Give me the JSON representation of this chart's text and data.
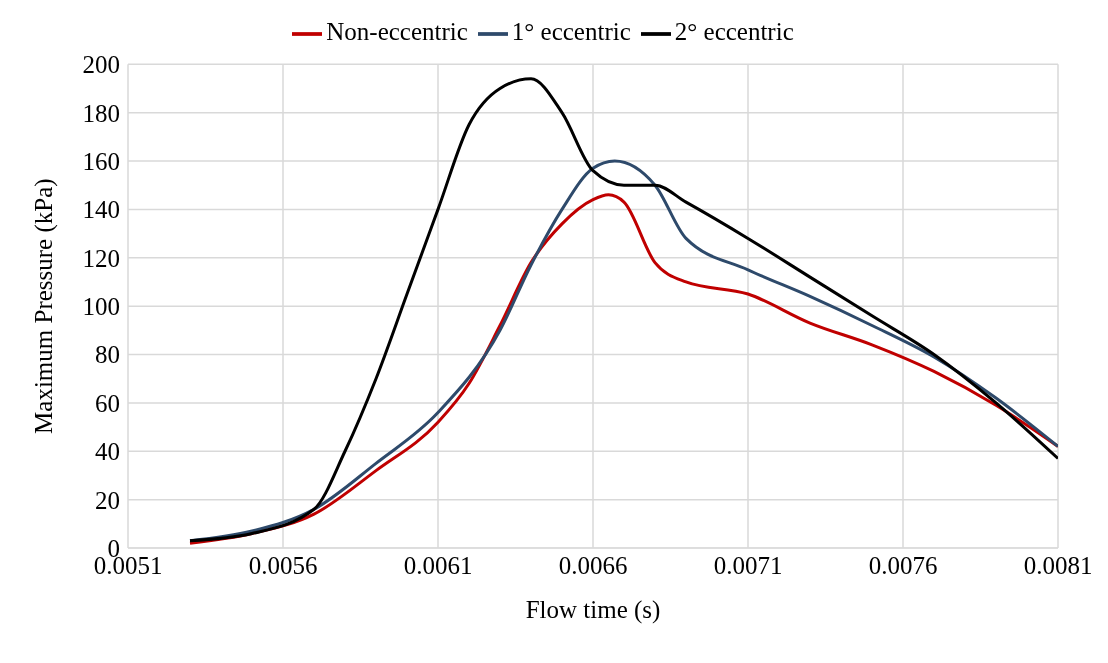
{
  "chart_data": {
    "type": "line",
    "xlabel": "Flow time (s)",
    "ylabel": "Maximum Pressure (kPa)",
    "xlim": [
      0.0051,
      0.0081
    ],
    "xticks": [
      0.0051,
      0.0056,
      0.0061,
      0.0066,
      0.0071,
      0.0076,
      0.0081
    ],
    "ylim": [
      0,
      200
    ],
    "yticks": [
      0,
      20,
      40,
      60,
      80,
      100,
      120,
      140,
      160,
      180,
      200
    ],
    "grid": true,
    "legend": "top",
    "marker": "none",
    "line_style": "solid",
    "series": [
      {
        "name": "Non-eccentric",
        "color": "#c00000",
        "x": [
          0.0053,
          0.0055,
          0.0057,
          0.0059,
          0.0061,
          0.0062,
          0.0063,
          0.0064,
          0.0065,
          0.0066,
          0.00665,
          0.0067,
          0.0068,
          0.0069,
          0.0071,
          0.0073,
          0.0075,
          0.0077,
          0.0079,
          0.0081
        ],
        "values": [
          2,
          6,
          14,
          32,
          52,
          68,
          92,
          118,
          134,
          144,
          146,
          143,
          118,
          110,
          105,
          93,
          84,
          73,
          59,
          42
        ]
      },
      {
        "name": "1° eccentric",
        "color": "#2e4a6b",
        "x": [
          0.0053,
          0.0055,
          0.0057,
          0.0059,
          0.0061,
          0.0063,
          0.0064,
          0.0065,
          0.0066,
          0.00667,
          0.0068,
          0.0069,
          0.0071,
          0.0073,
          0.0075,
          0.0077,
          0.0079,
          0.0081
        ],
        "values": [
          3,
          7,
          16,
          35,
          56,
          90,
          117,
          140,
          157,
          160,
          150,
          128,
          115,
          104,
          92,
          79,
          62,
          42
        ]
      },
      {
        "name": "2° eccentric",
        "color": "#000000",
        "x": [
          0.0053,
          0.0055,
          0.0057,
          0.0058,
          0.0059,
          0.006,
          0.0061,
          0.0062,
          0.0063,
          0.0064,
          0.0065,
          0.0066,
          0.0067,
          0.0068,
          0.0069,
          0.0071,
          0.0073,
          0.0075,
          0.0077,
          0.0079,
          0.0081
        ],
        "values": [
          3,
          6,
          16,
          40,
          70,
          105,
          140,
          175,
          190,
          194,
          180,
          156,
          150,
          150,
          143,
          128,
          112,
          96,
          80,
          60,
          37
        ]
      }
    ]
  }
}
